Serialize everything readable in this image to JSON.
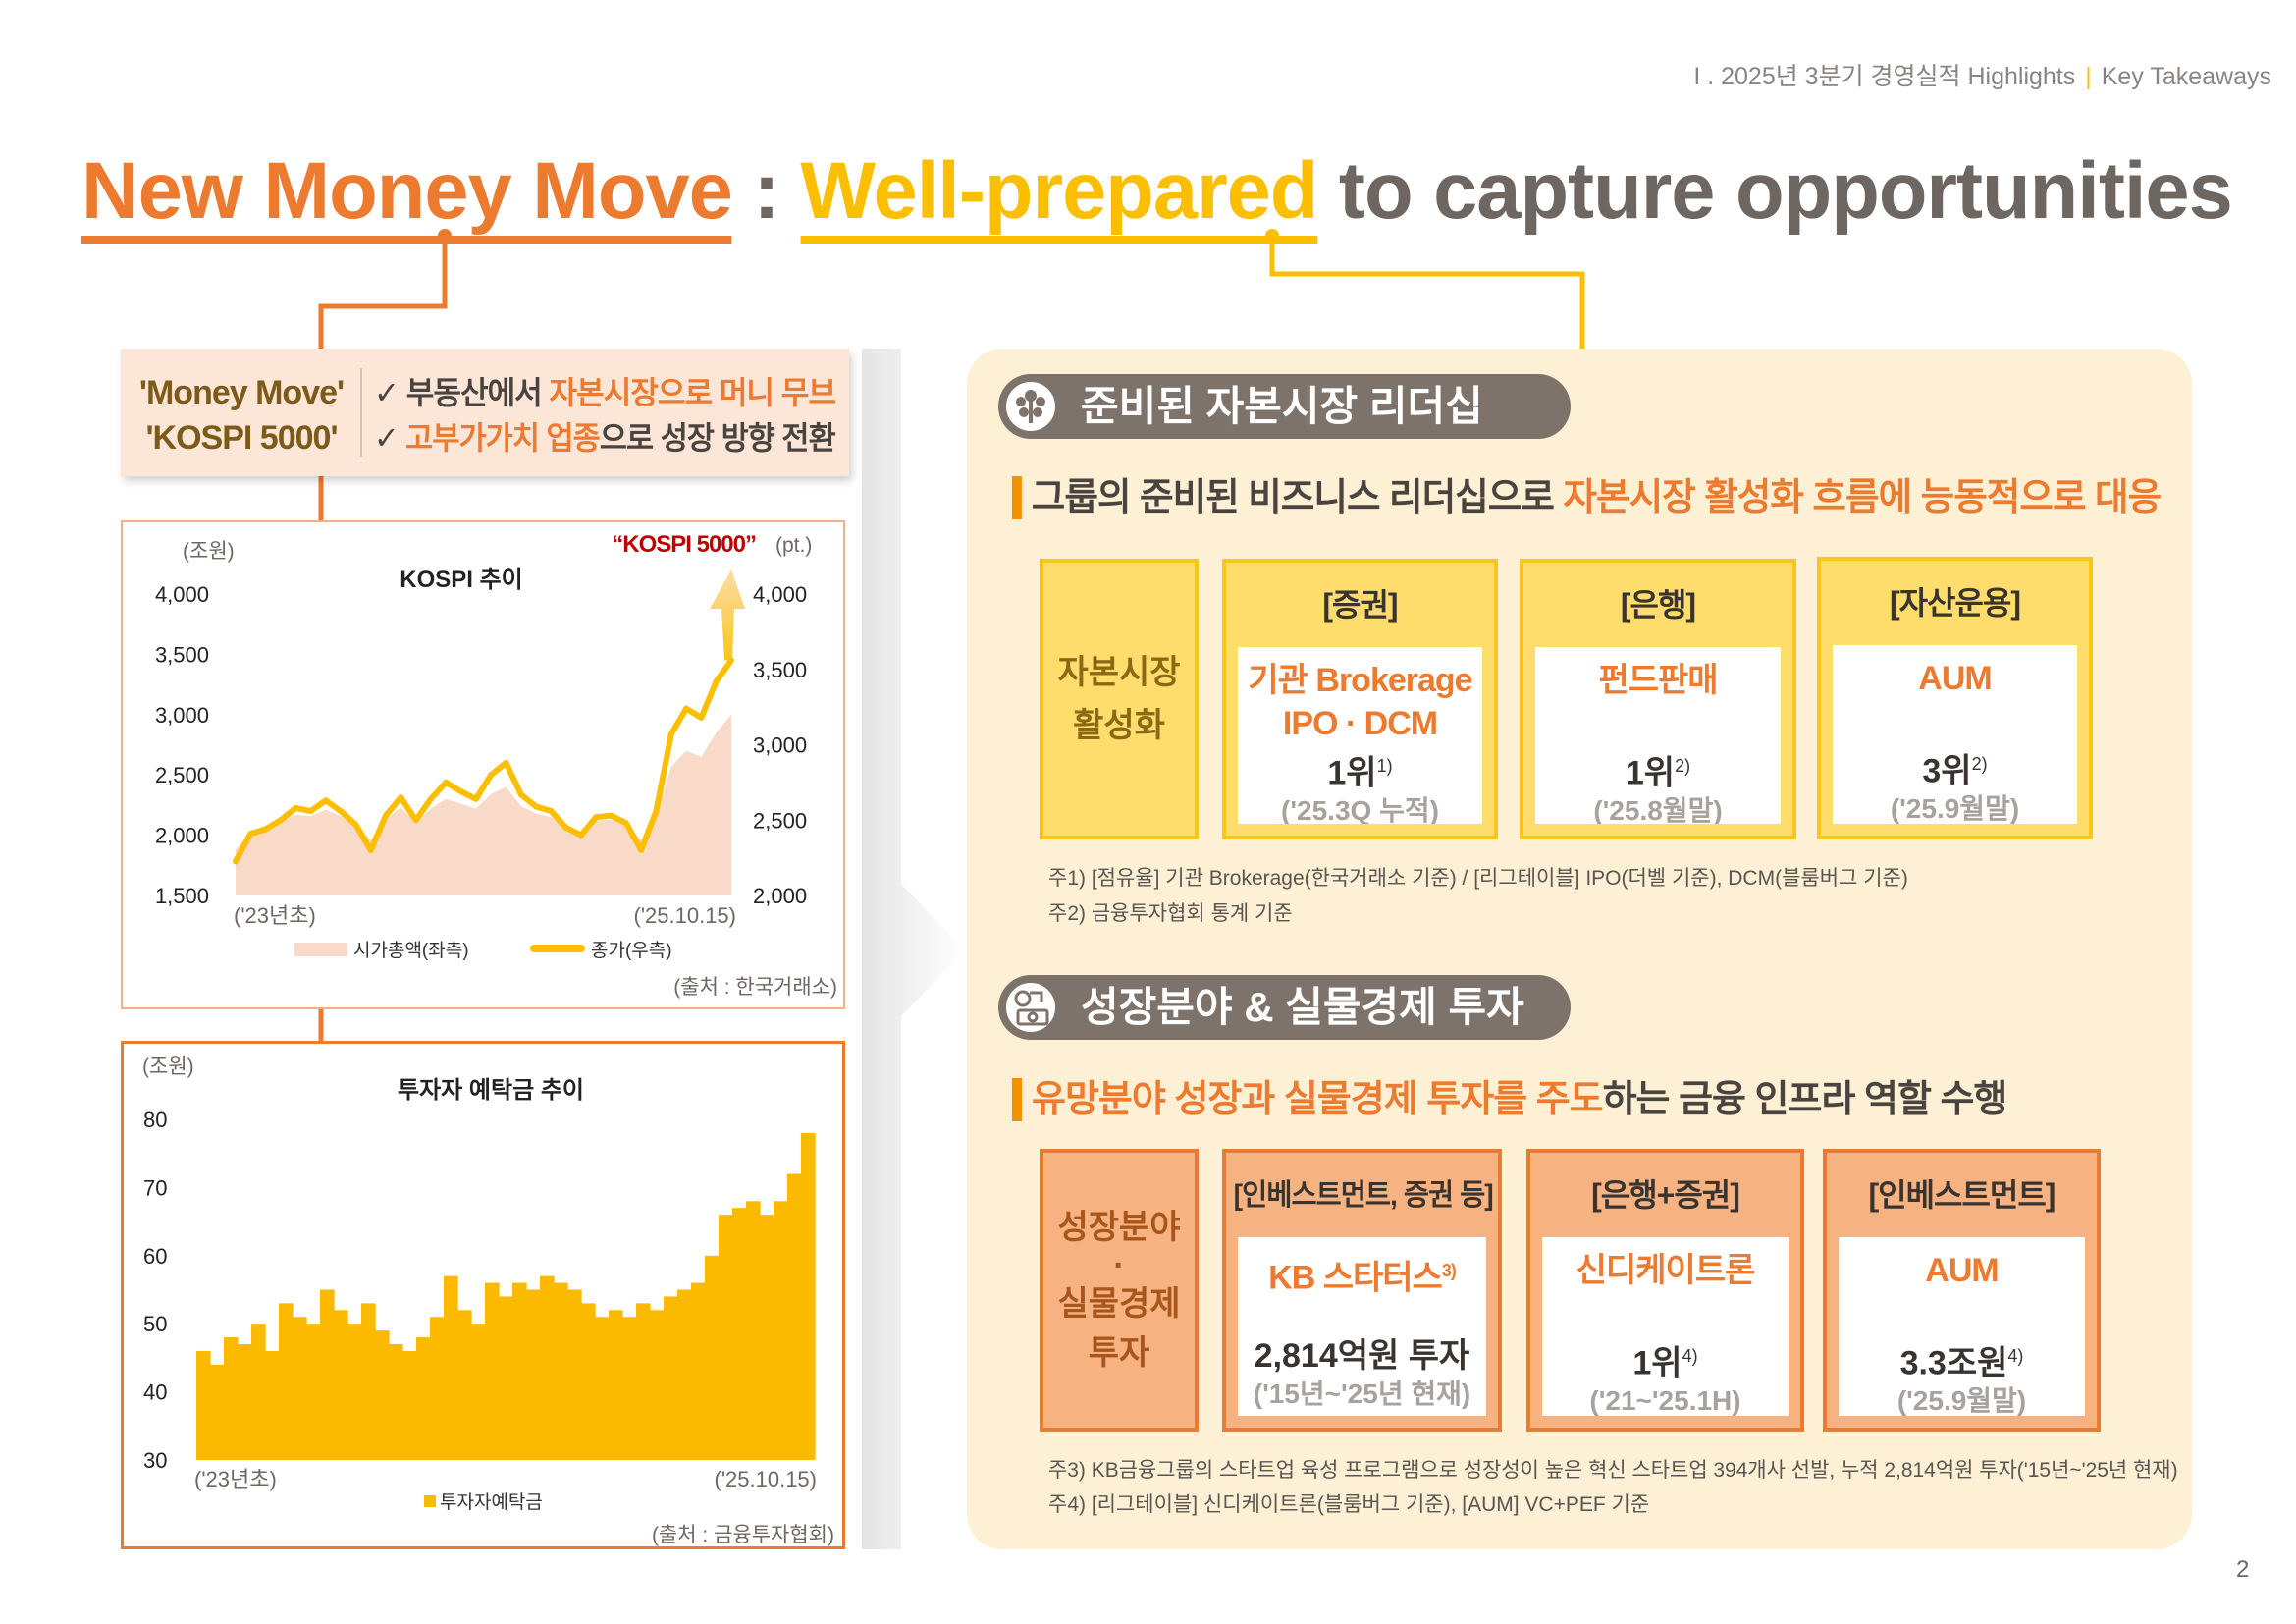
{
  "header": {
    "breadcrumb_section": "I . 2025년 3분기 경영실적 Highlights",
    "breadcrumb_page": "Key Takeaways"
  },
  "title": {
    "part1": "New Money Move",
    "colon": ":",
    "part2": "Well-prepared",
    "part3": "to capture opportunities"
  },
  "money_move": {
    "left_line1": "'Money Move'",
    "left_line2": "'KOSPI 5000'",
    "check": "✓",
    "point1_plain": "부동산에서 ",
    "point1_highlight": "자본시장으로 머니 무브",
    "point2_highlight": "고부가가치 업종",
    "point2_plain": "으로 성장 방향 전환"
  },
  "chart_data": [
    {
      "type": "line",
      "title": "KOSPI 추이",
      "y_left_unit": "(조원)",
      "y_right_unit": "(pt.)",
      "annotation": "KOSPI 5000",
      "annotation_quote_open": "“",
      "annotation_quote_close": "”",
      "x_start_label": "('23년초)",
      "x_end_label": "('25.10.15)",
      "source": "(출처 : 한국거래소)",
      "ylim_left": [
        1500,
        4000
      ],
      "ylim_right": [
        2000,
        4000
      ],
      "y_left_ticks": [
        "4,000",
        "3,500",
        "3,000",
        "2,500",
        "2,000",
        "1,500"
      ],
      "y_right_ticks": [
        "4,000",
        "3,500",
        "3,000",
        "2,500",
        "2,000"
      ],
      "grid": false,
      "legend_position": "bottom",
      "series": [
        {
          "name": "시가총액(좌측)",
          "type": "area",
          "axis": "left",
          "color": "#f9d9c7",
          "values": [
            1880,
            2030,
            2060,
            2110,
            2170,
            2160,
            2210,
            2160,
            2090,
            1960,
            2130,
            2230,
            2110,
            2220,
            2300,
            2260,
            2220,
            2340,
            2400,
            2240,
            2180,
            2150,
            2070,
            2030,
            2120,
            2130,
            2090,
            1960,
            2160,
            2570,
            2700,
            2650,
            2850,
            3000
          ]
        },
        {
          "name": "종가(우측)",
          "type": "line",
          "axis": "right",
          "color": "#fbbf00",
          "values": [
            2225,
            2410,
            2440,
            2500,
            2580,
            2560,
            2630,
            2560,
            2470,
            2300,
            2530,
            2650,
            2500,
            2640,
            2750,
            2690,
            2640,
            2800,
            2880,
            2670,
            2590,
            2560,
            2450,
            2400,
            2520,
            2530,
            2480,
            2300,
            2560,
            3070,
            3240,
            3180,
            3420,
            3560
          ]
        }
      ]
    },
    {
      "type": "area",
      "title": "투자자 예탁금 추이",
      "y_unit": "(조원)",
      "x_start_label": "('23년초)",
      "x_end_label": "('25.10.15)",
      "source": "(출처 : 금융투자협회)",
      "ylim": [
        30,
        80
      ],
      "y_ticks": [
        "80",
        "70",
        "60",
        "50",
        "40",
        "30"
      ],
      "grid": false,
      "legend_position": "bottom",
      "series": [
        {
          "name": "투자자예탁금",
          "color": "#fbb900",
          "values": [
            46,
            44,
            48,
            47,
            50,
            46,
            53,
            51,
            50,
            55,
            52,
            50,
            53,
            49,
            47,
            46,
            48,
            51,
            57,
            52,
            50,
            56,
            54,
            56,
            55,
            57,
            56,
            55,
            53,
            51,
            52,
            51,
            53,
            52,
            54,
            55,
            56,
            60,
            66,
            67,
            68,
            66,
            68,
            72,
            78
          ]
        }
      ]
    }
  ],
  "panel": {
    "section1": {
      "icon": "kb-flower-icon",
      "title": "준비된 자본시장 리더십",
      "subtitle_plain": "그룹의 준비된 비즈니스 리더십으로 ",
      "subtitle_highlight": "자본시장 활성화 흐름에 능동적으로 대응",
      "label_line1": "자본시장",
      "label_line2": "활성화",
      "cards": [
        {
          "head": "[증권]",
          "main1": "기관 Brokerage",
          "main2": "IPO · DCM",
          "rank": "1위",
          "note_ref": "1)",
          "period": "('25.3Q 누적)"
        },
        {
          "head": "[은행]",
          "main1": "펀드판매",
          "main2": "",
          "rank": "1위",
          "note_ref": "2)",
          "period": "('25.8월말)"
        },
        {
          "head": "[자산운용]",
          "main1": "AUM",
          "main2": "",
          "rank": "3위",
          "note_ref": "2)",
          "period": "('25.9월말)"
        }
      ],
      "notes": [
        "주1) [점유율] 기관 Brokerage(한국거래소 기준) / [리그테이블] IPO(더벨 기준), DCM(블룸버그 기준)",
        "주2) 금융투자협회 통계 기준"
      ]
    },
    "section2": {
      "icon": "investment-coins-icon",
      "title": "성장분야 & 실물경제 투자",
      "subtitle_highlight": "유망분야 성장과 실물경제 투자를 주도",
      "subtitle_plain": "하는 금융 인프라 역할 수행",
      "label_line1": "성장분야",
      "label_dot": "·",
      "label_line2": "실물경제",
      "label_line3": "투자",
      "cards": [
        {
          "head": "[인베스트먼트, 증권 등]",
          "main1": "KB 스타터스",
          "main_ref": "3)",
          "rank": "2,814억원 투자",
          "note_ref": "",
          "period": "('15년~'25년 현재)"
        },
        {
          "head": "[은행+증권]",
          "main1": "신디케이트론",
          "main_ref": "",
          "rank": "1위",
          "note_ref": "4)",
          "period": "('21~'25.1H)"
        },
        {
          "head": "[인베스트먼트]",
          "main1": "AUM",
          "main_ref": "",
          "rank": "3.3조원",
          "note_ref": "4)",
          "period": "('25.9월말)"
        }
      ],
      "notes": [
        "주3) KB금융그룹의 스타트업 육성 프로그램으로 성장성이 높은 혁신 스타트업 394개사 선발, 누적 2,814억원 투자('15년~'25년 현재)",
        "주4) [리그테이블] 신디케이트론(블룸버그 기준), [AUM] VC+PEF 기준"
      ]
    }
  },
  "page_number": "2",
  "colors": {
    "orange": "#ec7a2f",
    "yellow": "#fbbf00",
    "gray": "#6e6660",
    "panel_bg": "#fdf0d5",
    "kospi_annotation": "#c00000"
  }
}
